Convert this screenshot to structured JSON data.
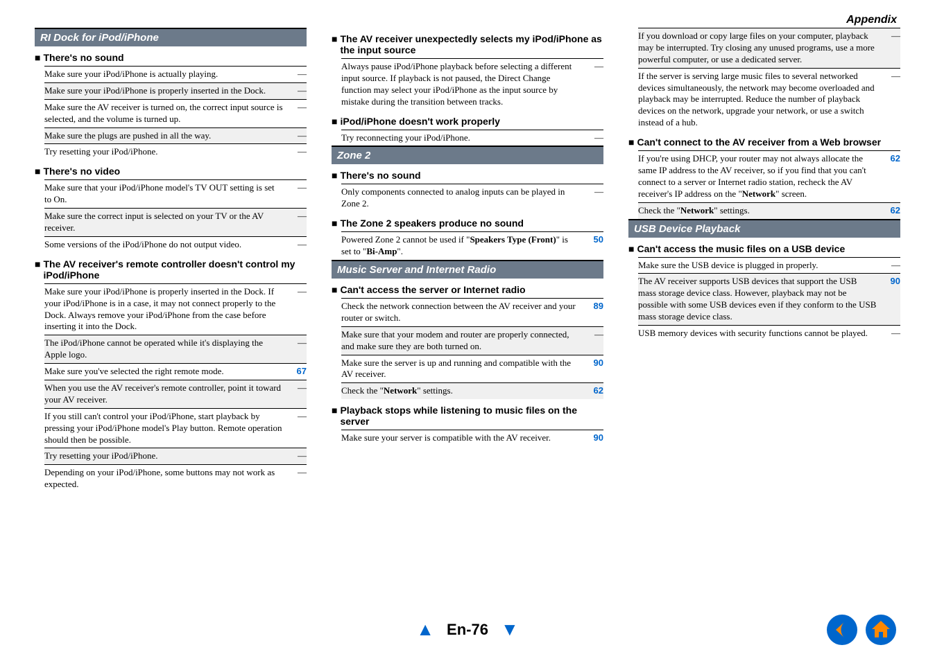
{
  "appendix": "Appendix",
  "page_label": "En-76",
  "col1": {
    "section": "RI Dock for iPod/iPhone",
    "groups": [
      {
        "title": "There's no sound",
        "items": [
          {
            "txt": "Make sure your iPod/iPhone is actually playing.",
            "ref": "—",
            "alt": false,
            "num": false
          },
          {
            "txt": "Make sure your iPod/iPhone is properly inserted in the Dock.",
            "ref": "—",
            "alt": true,
            "num": false
          },
          {
            "txt": "Make sure the AV receiver is turned on, the correct input source is selected, and the volume is turned up.",
            "ref": "—",
            "alt": false,
            "num": false
          },
          {
            "txt": "Make sure the plugs are pushed in all the way.",
            "ref": "—",
            "alt": true,
            "num": false
          },
          {
            "txt": "Try resetting your iPod/iPhone.",
            "ref": "—",
            "alt": false,
            "num": false
          }
        ]
      },
      {
        "title": "There's no video",
        "items": [
          {
            "txt": "Make sure that your iPod/iPhone model's TV OUT setting is set to On.",
            "ref": "—",
            "alt": false,
            "num": false
          },
          {
            "txt": "Make sure the correct input is selected on your TV or the AV receiver.",
            "ref": "—",
            "alt": true,
            "num": false
          },
          {
            "txt": "Some versions of the iPod/iPhone do not output video.",
            "ref": "—",
            "alt": false,
            "num": false
          }
        ]
      },
      {
        "title": "The AV receiver's remote controller doesn't control my iPod/iPhone",
        "items": [
          {
            "txt": "Make sure your iPod/iPhone is properly inserted in the Dock. If your iPod/iPhone is in a case, it may not connect properly to the Dock. Always remove your iPod/iPhone from the case before inserting it into the Dock.",
            "ref": "—",
            "alt": false,
            "num": false
          },
          {
            "txt": "The iPod/iPhone cannot be operated while it's displaying the Apple logo.",
            "ref": "—",
            "alt": true,
            "num": false
          },
          {
            "txt": "Make sure you've selected the right remote mode.",
            "ref": "67",
            "alt": false,
            "num": true
          },
          {
            "txt": "When you use the AV receiver's remote controller, point it toward your AV receiver.",
            "ref": "—",
            "alt": true,
            "num": false
          },
          {
            "txt": "If you still can't control your iPod/iPhone, start playback by pressing your iPod/iPhone model's Play button. Remote operation should then be possible.",
            "ref": "—",
            "alt": false,
            "num": false
          },
          {
            "txt": "Try resetting your iPod/iPhone.",
            "ref": "—",
            "alt": true,
            "num": false
          },
          {
            "txt": "Depending on your iPod/iPhone, some buttons may not work as expected.",
            "ref": "—",
            "alt": false,
            "num": false
          }
        ]
      }
    ]
  },
  "col2": {
    "groups_top": [
      {
        "title": "The AV receiver unexpectedly selects my iPod/iPhone as the input source",
        "items": [
          {
            "txt": "Always pause iPod/iPhone playback before selecting a different input source. If playback is not paused, the Direct Change function may select your iPod/iPhone as the input source by mistake during the transition between tracks.",
            "ref": "—",
            "alt": false,
            "num": false
          }
        ]
      },
      {
        "title": "iPod/iPhone doesn't work properly",
        "items": [
          {
            "txt": "Try reconnecting your iPod/iPhone.",
            "ref": "—",
            "alt": false,
            "num": false
          }
        ]
      }
    ],
    "section_zone": "Zone 2",
    "groups_zone": [
      {
        "title": "There's no sound",
        "items": [
          {
            "txt": "Only components connected to analog inputs can be played in Zone 2.",
            "ref": "—",
            "alt": false,
            "num": false
          }
        ]
      },
      {
        "title": "The Zone 2 speakers produce no sound",
        "items": [
          {
            "html": "Powered Zone 2 cannot be used if \"<b>Speakers Type (Front)</b>\" is set to \"<b>Bi-Amp</b>\".",
            "ref": "50",
            "alt": false,
            "num": true
          }
        ]
      }
    ],
    "section_music": "Music Server and Internet Radio",
    "groups_music": [
      {
        "title": "Can't access the server or Internet radio",
        "items": [
          {
            "txt": "Check the network connection between the AV receiver and your router or switch.",
            "ref": "89",
            "alt": false,
            "num": true
          },
          {
            "txt": "Make sure that your modem and router are properly connected, and make sure they are both turned on.",
            "ref": "—",
            "alt": true,
            "num": false
          },
          {
            "txt": "Make sure the server is up and running and compatible with the AV receiver.",
            "ref": "90",
            "alt": false,
            "num": true
          },
          {
            "html": "Check the \"<b>Network</b>\" settings.",
            "ref": "62",
            "alt": true,
            "num": true
          }
        ]
      },
      {
        "title": "Playback stops while listening to music files on the server",
        "items": [
          {
            "txt": "Make sure your server is compatible with the AV receiver.",
            "ref": "90",
            "alt": false,
            "num": true
          }
        ]
      }
    ]
  },
  "col3": {
    "top_items": [
      {
        "txt": "If you download or copy large files on your computer, playback may be interrupted. Try closing any unused programs, use a more powerful computer, or use a dedicated server.",
        "ref": "—",
        "alt": true,
        "num": false
      },
      {
        "txt": "If the server is serving large music files to several networked devices simultaneously, the network may become overloaded and playback may be interrupted. Reduce the number of playback devices on the network, upgrade your network, or use a switch instead of a hub.",
        "ref": "—",
        "alt": false,
        "num": false
      }
    ],
    "groups_top": [
      {
        "title": "Can't connect to the AV receiver from a Web browser",
        "items": [
          {
            "html": "If you're using DHCP, your router may not always allocate the same IP address to the AV receiver, so if you find that you can't connect to a server or Internet radio station, recheck the AV receiver's IP address on the \"<b>Network</b>\" screen.",
            "ref": "62",
            "alt": false,
            "num": true
          },
          {
            "html": "Check the \"<b>Network</b>\" settings.",
            "ref": "62",
            "alt": true,
            "num": true
          }
        ]
      }
    ],
    "section_usb": "USB Device Playback",
    "groups_usb": [
      {
        "title": "Can't access the music files on a USB device",
        "items": [
          {
            "txt": "Make sure the USB device is plugged in properly.",
            "ref": "—",
            "alt": false,
            "num": false
          },
          {
            "txt": "The AV receiver supports USB devices that support the USB mass storage device class. However, playback may not be possible with some USB devices even if they conform to the USB mass storage device class.",
            "ref": "90",
            "alt": true,
            "num": true
          },
          {
            "txt": "USB memory devices with security functions cannot be played.",
            "ref": "—",
            "alt": false,
            "num": false
          }
        ]
      }
    ]
  }
}
